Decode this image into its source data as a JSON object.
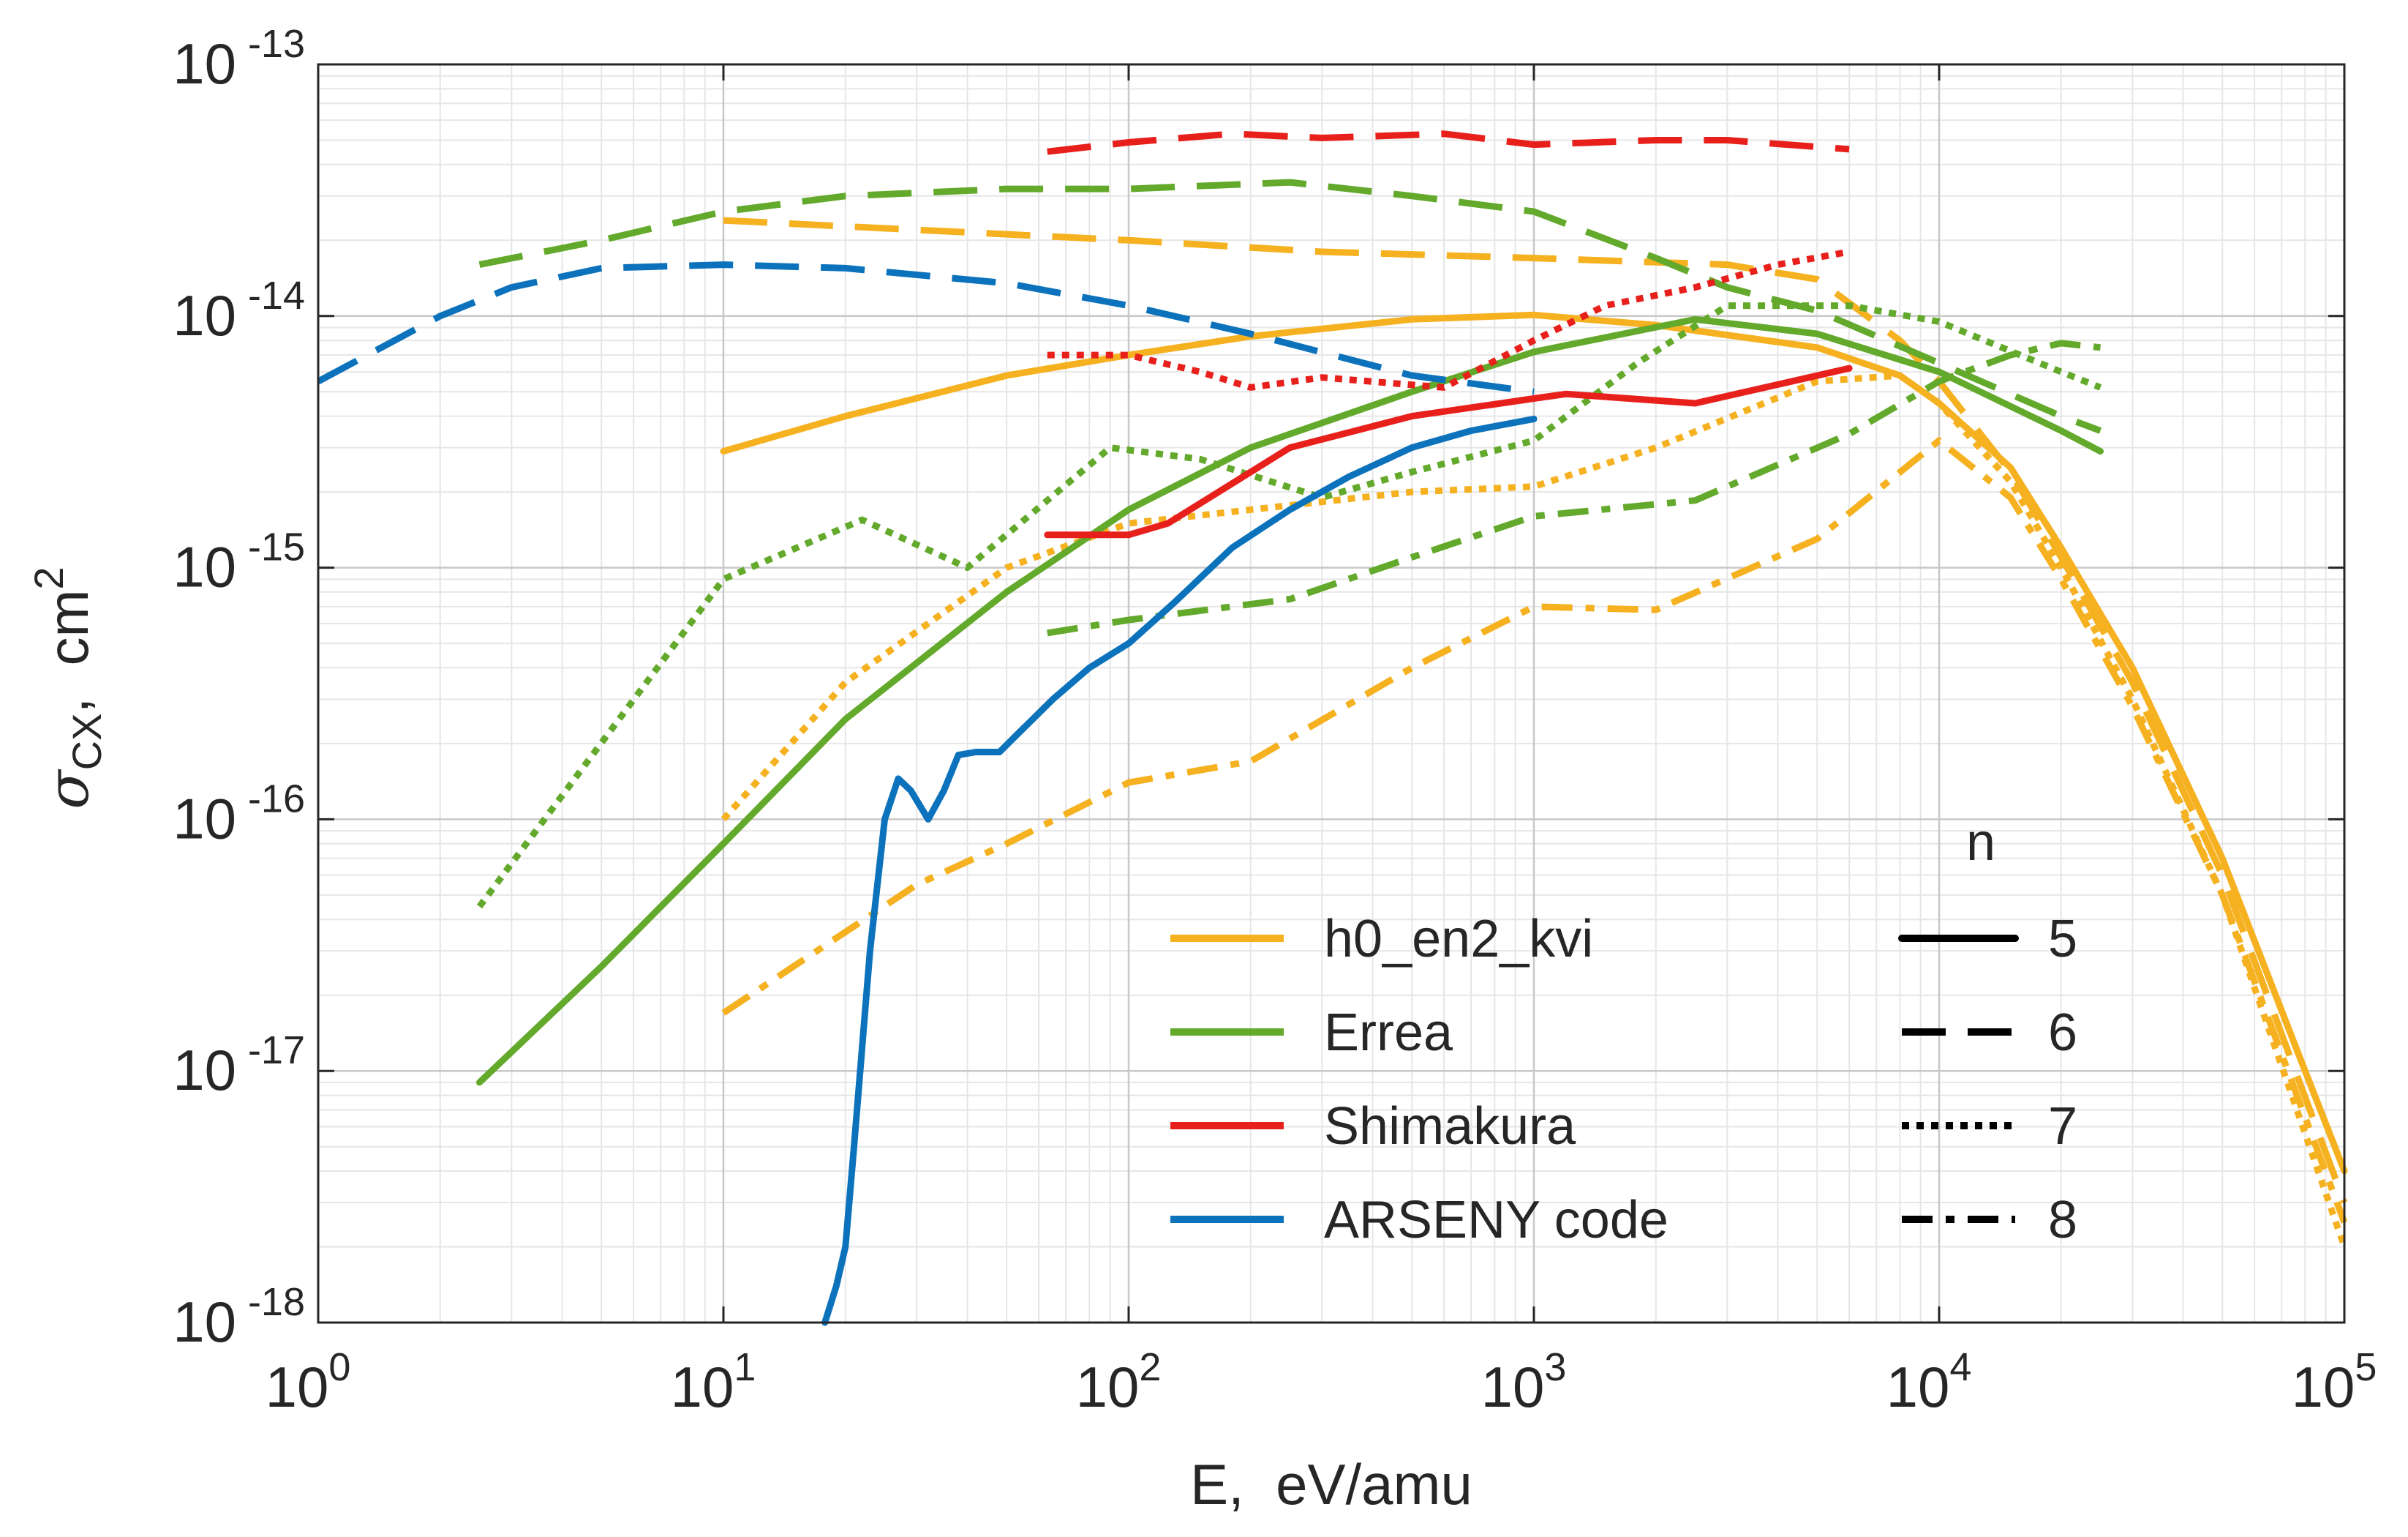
{
  "chart_data": {
    "type": "line",
    "title": "",
    "xlabel": "E,  eV/amu",
    "ylabel": {
      "sigma": "σ",
      "sub": "CX",
      "tail": ",  cm",
      "sup": "2"
    },
    "x_scale": "log",
    "y_scale": "log",
    "xlim": [
      1,
      100000
    ],
    "ylim": [
      1e-18,
      1e-13
    ],
    "grid": true,
    "x_ticks": [
      {
        "base": "10",
        "exp": "0",
        "value": 1
      },
      {
        "base": "10",
        "exp": "1",
        "value": 10
      },
      {
        "base": "10",
        "exp": "2",
        "value": 100
      },
      {
        "base": "10",
        "exp": "3",
        "value": 1000
      },
      {
        "base": "10",
        "exp": "4",
        "value": 10000
      },
      {
        "base": "10",
        "exp": "5",
        "value": 100000
      }
    ],
    "y_ticks": [
      {
        "base": "10",
        "exp": "-18",
        "value": 1e-18
      },
      {
        "base": "10",
        "exp": "-17",
        "value": 1e-17
      },
      {
        "base": "10",
        "exp": "-16",
        "value": 1e-16
      },
      {
        "base": "10",
        "exp": "-15",
        "value": 1e-15
      },
      {
        "base": "10",
        "exp": "-14",
        "value": 1e-14
      },
      {
        "base": "10",
        "exp": "-13",
        "value": 1e-13
      }
    ],
    "legend_sources": {
      "placement": "bottom-center",
      "items": [
        {
          "label": "h0_en2_kvi",
          "color": "#f5b120"
        },
        {
          "label": "Errea",
          "color": "#63a92b"
        },
        {
          "label": "Shimakura",
          "color": "#e8201c"
        },
        {
          "label": "ARSENY code",
          "color": "#0b72bb"
        }
      ]
    },
    "legend_n": {
      "title": "n",
      "placement": "bottom-right",
      "items": [
        {
          "label": "5",
          "style": "solid"
        },
        {
          "label": "6",
          "style": "dashed"
        },
        {
          "label": "7",
          "style": "dotted"
        },
        {
          "label": "8",
          "style": "dashdot"
        }
      ]
    },
    "series": [
      {
        "source": "h0_en2_kvi",
        "n": "5",
        "color": "#f5b120",
        "style": "solid",
        "x": [
          10,
          20,
          50,
          100,
          200,
          500,
          1000,
          2000,
          5000,
          8000,
          10000,
          15000,
          20000,
          30000,
          50000,
          80000,
          100000
        ],
        "y": [
          2.9e-15,
          4e-15,
          5.8e-15,
          7e-15,
          8.3e-15,
          9.7e-15,
          1.01e-14,
          9.2e-15,
          7.5e-15,
          5.8e-15,
          4.5e-15,
          2.5e-15,
          1.2e-15,
          4e-16,
          7e-17,
          1e-17,
          4e-18
        ]
      },
      {
        "source": "h0_en2_kvi",
        "n": "6",
        "color": "#f5b120",
        "style": "dashed",
        "x": [
          10,
          30,
          100,
          300,
          1000,
          3000,
          5000,
          8000,
          10000,
          15000,
          20000,
          30000,
          50000,
          100000
        ],
        "y": [
          2.4e-14,
          2.2e-14,
          2e-14,
          1.8e-14,
          1.7e-14,
          1.6e-14,
          1.4e-14,
          8e-15,
          5.5e-15,
          2.4e-15,
          1.1e-15,
          3.5e-16,
          6e-17,
          3e-18
        ]
      },
      {
        "source": "h0_en2_kvi",
        "n": "7",
        "color": "#f5b120",
        "style": "dotted",
        "x": [
          10,
          20,
          50,
          100,
          200,
          500,
          1000,
          2000,
          5000,
          8000,
          10000,
          15000,
          20000,
          30000,
          50000,
          100000
        ],
        "y": [
          1e-16,
          3.5e-16,
          1e-15,
          1.5e-15,
          1.7e-15,
          2e-15,
          2.1e-15,
          3e-15,
          5.5e-15,
          5.8e-15,
          4.5e-15,
          2.2e-15,
          1e-15,
          3e-16,
          5e-17,
          2e-18
        ]
      },
      {
        "source": "h0_en2_kvi",
        "n": "8",
        "color": "#f5b120",
        "style": "dashdot",
        "x": [
          10,
          30,
          50,
          100,
          200,
          500,
          1000,
          2000,
          5000,
          10000,
          15000,
          20000,
          30000,
          50000,
          100000
        ],
        "y": [
          1.7e-17,
          5.5e-17,
          8e-17,
          1.4e-16,
          1.7e-16,
          4e-16,
          7e-16,
          6.8e-16,
          1.3e-15,
          3.2e-15,
          1.9e-15,
          9e-16,
          2.8e-16,
          5e-17,
          2.5e-18
        ]
      },
      {
        "source": "Errea",
        "n": "5",
        "color": "#63a92b",
        "style": "solid",
        "x": [
          2.5,
          5,
          10,
          20,
          50,
          100,
          200,
          500,
          1000,
          2500,
          5000,
          10000,
          20000,
          25000
        ],
        "y": [
          9e-18,
          2.6e-17,
          8e-17,
          2.5e-16,
          8e-16,
          1.7e-15,
          3e-15,
          5e-15,
          7.2e-15,
          9.7e-15,
          8.5e-15,
          6e-15,
          3.5e-15,
          2.9e-15
        ]
      },
      {
        "source": "Errea",
        "n": "6",
        "color": "#63a92b",
        "style": "dashed",
        "x": [
          2.5,
          5,
          10,
          20,
          50,
          100,
          250,
          500,
          1000,
          2000,
          3000,
          5000,
          10000,
          20000,
          25000
        ],
        "y": [
          1.6e-14,
          2e-14,
          2.6e-14,
          3e-14,
          3.2e-14,
          3.2e-14,
          3.4e-14,
          3e-14,
          2.6e-14,
          1.7e-14,
          1.3e-14,
          1.05e-14,
          6.5e-15,
          4e-15,
          3.5e-15
        ]
      },
      {
        "source": "Errea",
        "n": "7",
        "color": "#63a92b",
        "style": "dotted",
        "x": [
          2.5,
          10,
          22,
          40,
          90,
          150,
          300,
          500,
          1000,
          1800,
          3000,
          6000,
          10000,
          20000,
          25000
        ],
        "y": [
          4.5e-17,
          9e-16,
          1.55e-15,
          1e-15,
          3e-15,
          2.7e-15,
          1.9e-15,
          2.4e-15,
          3.2e-15,
          6.5e-15,
          1.1e-14,
          1.1e-14,
          9.5e-15,
          6e-15,
          5.2e-15
        ]
      },
      {
        "source": "Errea",
        "n": "8",
        "color": "#63a92b",
        "style": "dashdot",
        "x": [
          63,
          100,
          250,
          500,
          1000,
          2500,
          6000,
          10000,
          15000,
          20000,
          25000
        ],
        "y": [
          5.5e-16,
          6.2e-16,
          7.5e-16,
          1.1e-15,
          1.6e-15,
          1.85e-15,
          3.4e-15,
          5.5e-15,
          7e-15,
          7.8e-15,
          7.5e-15
        ]
      },
      {
        "source": "Shimakura",
        "n": "5",
        "color": "#e8201c",
        "style": "solid",
        "x": [
          63,
          100,
          125,
          250,
          500,
          1000,
          1200,
          2500,
          6000
        ],
        "y": [
          1.35e-15,
          1.35e-15,
          1.5e-15,
          3e-15,
          4e-15,
          4.7e-15,
          4.9e-15,
          4.5e-15,
          6.2e-15
        ]
      },
      {
        "source": "Shimakura",
        "n": "6",
        "color": "#e8201c",
        "style": "dashed",
        "x": [
          63,
          100,
          180,
          300,
          600,
          1000,
          2000,
          3000,
          6000
        ],
        "y": [
          4.5e-14,
          4.9e-14,
          5.3e-14,
          5.1e-14,
          5.3e-14,
          4.8e-14,
          5e-14,
          5e-14,
          4.6e-14
        ]
      },
      {
        "source": "Shimakura",
        "n": "7",
        "color": "#e8201c",
        "style": "dotted",
        "x": [
          63,
          100,
          150,
          200,
          300,
          600,
          1000,
          1500,
          2500,
          4000,
          6000
        ],
        "y": [
          7e-15,
          7e-15,
          6e-15,
          5.2e-15,
          5.7e-15,
          5.2e-15,
          8e-15,
          1.1e-14,
          1.3e-14,
          1.6e-14,
          1.8e-14
        ]
      },
      {
        "source": "ARSENY code",
        "n": "5",
        "color": "#0b72bb",
        "style": "solid",
        "x": [
          17.8,
          19,
          20,
          21,
          23,
          25,
          27,
          29,
          32,
          35,
          38,
          42,
          48,
          55,
          65,
          80,
          100,
          130,
          180,
          250,
          350,
          500,
          700,
          1000
        ],
        "y": [
          1e-18,
          1.4e-18,
          2e-18,
          5e-18,
          3e-17,
          1e-16,
          1.45e-16,
          1.3e-16,
          1e-16,
          1.3e-16,
          1.8e-16,
          1.85e-16,
          1.85e-16,
          2.3e-16,
          3e-16,
          4e-16,
          5e-16,
          7.3e-16,
          1.2e-15,
          1.7e-15,
          2.3e-15,
          3e-15,
          3.5e-15,
          3.9e-15
        ]
      },
      {
        "source": "ARSENY code",
        "n": "6",
        "color": "#0b72bb",
        "style": "dashed",
        "x": [
          1,
          2,
          3,
          5,
          10,
          20,
          50,
          100,
          200,
          500,
          1000
        ],
        "y": [
          5.5e-15,
          1e-14,
          1.3e-14,
          1.55e-14,
          1.6e-14,
          1.55e-14,
          1.35e-14,
          1.1e-14,
          8.5e-15,
          5.8e-15,
          5e-15
        ]
      }
    ]
  }
}
